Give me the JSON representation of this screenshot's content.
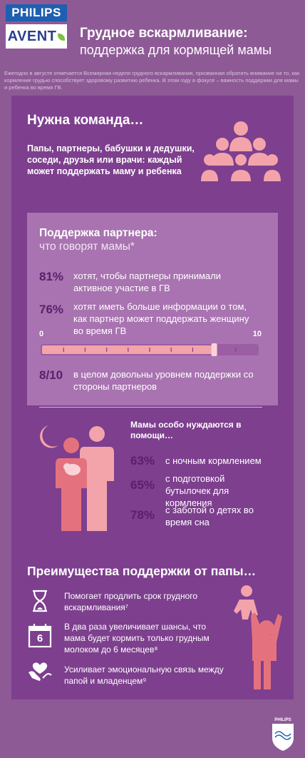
{
  "header": {
    "logo_philips": "PHILIPS",
    "logo_avent": "AVENT",
    "title": "Грудное вскармливание:",
    "subtitle": "поддержка для кормящей мамы"
  },
  "intro": "Ежегодно в августе отмечается Всемирная неделя грудного вскармливания, призванная обратить внимание на то, как кормление грудью способствует здоровому развитию ребенка. В этом году в фокусе – важность поддержки для мамы и ребенка во время ГВ.",
  "team": {
    "title": "Нужна команда…",
    "text": "Папы, партнеры, бабушки и дедушки, соседи, друзья или врачи: каждый может поддержать маму и ребенка",
    "icon": "group-of-people-icon"
  },
  "partner_support": {
    "title": "Поддержка партнера:",
    "subtitle": "что говорят мамы*",
    "stats": [
      {
        "value": "81%",
        "text": "хотят, чтобы партнеры принимали активное участие в ГВ"
      },
      {
        "value": "76%",
        "text": "хотят иметь больше информации о том, как партнер может поддержать женщину во время ГВ"
      }
    ],
    "scale": {
      "min_label": "0",
      "max_label": "10",
      "min": 0,
      "max": 10,
      "value": 8
    },
    "rating": {
      "value": "8/10",
      "text": "в целом довольны уровнем поддержки со стороны партнеров"
    }
  },
  "moms_help": {
    "title": "Мамы особо нуждаются в помощи…",
    "stats": [
      {
        "value": "63%",
        "text": "с ночным кормлением"
      },
      {
        "value": "65%",
        "text": "с подготовкой бутылочек для кормления"
      },
      {
        "value": "78%",
        "text": "с заботой о детях во время сна"
      }
    ]
  },
  "benefits": {
    "title": "Преимущества поддержки от папы…",
    "items": [
      {
        "icon": "hourglass-icon",
        "text": "Помогает продлить срок грудного вскармливания⁷"
      },
      {
        "icon": "calendar-icon",
        "icon_text": "6",
        "text": "В два раза увеличивает шансы, что мама будет кормить только грудным молоком до 6 месяцев⁸"
      },
      {
        "icon": "hands-heart-icon",
        "text": "Усиливает эмоциональную связь между папой и младенцем⁹"
      }
    ]
  },
  "footer": {
    "brand": "PHILIPS"
  },
  "colors": {
    "background": "#8e5a96",
    "panel": "#7d3f8e",
    "box": "#a873b0",
    "accent_pink": "#f3a4ab",
    "stat_dark": "#5c1f6b"
  }
}
